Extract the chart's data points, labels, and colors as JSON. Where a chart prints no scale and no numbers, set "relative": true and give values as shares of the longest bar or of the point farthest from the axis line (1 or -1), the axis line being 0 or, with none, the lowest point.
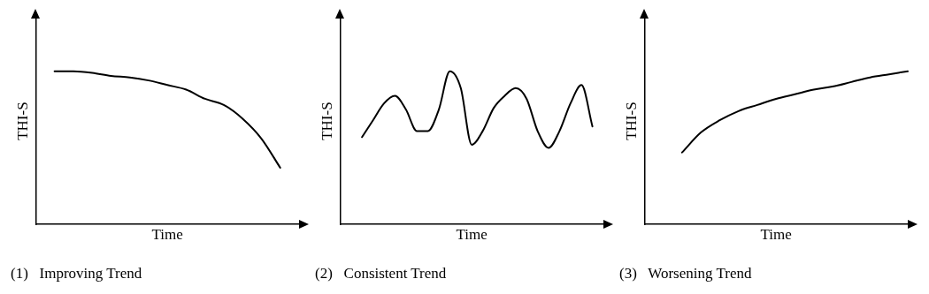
{
  "chart_data": [
    {
      "type": "line",
      "title": "(1)   Improving Trend",
      "xlabel": "Time",
      "ylabel": "THI-S",
      "relative": true,
      "grid": false,
      "color": "#000000",
      "categories": [
        null,
        null,
        null,
        null,
        null,
        null,
        null,
        null,
        null,
        null,
        null,
        null,
        null,
        null,
        null
      ],
      "values": [
        null,
        1.0,
        1.0,
        0.99,
        0.97,
        0.96,
        0.94,
        0.91,
        0.88,
        0.82,
        0.78,
        0.69,
        0.56,
        0.37,
        null
      ]
    },
    {
      "type": "line",
      "title": "(2)   Consistent Trend",
      "xlabel": "Time",
      "ylabel": "THI-S",
      "relative": true,
      "grid": false,
      "color": "#000000",
      "categories": [
        null,
        null,
        null,
        null,
        null,
        null,
        null,
        null,
        null,
        null,
        null,
        null,
        null,
        null,
        null,
        null,
        null,
        null,
        null,
        null,
        null,
        null,
        null,
        null,
        null
      ],
      "values": [
        null,
        null,
        0.57,
        0.68,
        0.79,
        0.84,
        0.75,
        0.61,
        0.61,
        0.75,
        1.0,
        0.89,
        0.52,
        0.61,
        0.76,
        0.84,
        0.89,
        0.82,
        0.61,
        0.5,
        0.61,
        0.79,
        0.91,
        0.64,
        null
      ]
    },
    {
      "type": "line",
      "title": "(3)   Worsening Trend",
      "xlabel": "Time",
      "ylabel": "THI-S",
      "relative": true,
      "grid": false,
      "color": "#000000",
      "categories": [
        null,
        null,
        null,
        null,
        null,
        null,
        null,
        null,
        null,
        null,
        null,
        null,
        null,
        null,
        null
      ],
      "values": [
        null,
        null,
        0.47,
        0.6,
        0.68,
        0.74,
        0.78,
        0.82,
        0.85,
        0.88,
        0.9,
        0.93,
        0.96,
        0.98,
        1.0
      ]
    }
  ]
}
